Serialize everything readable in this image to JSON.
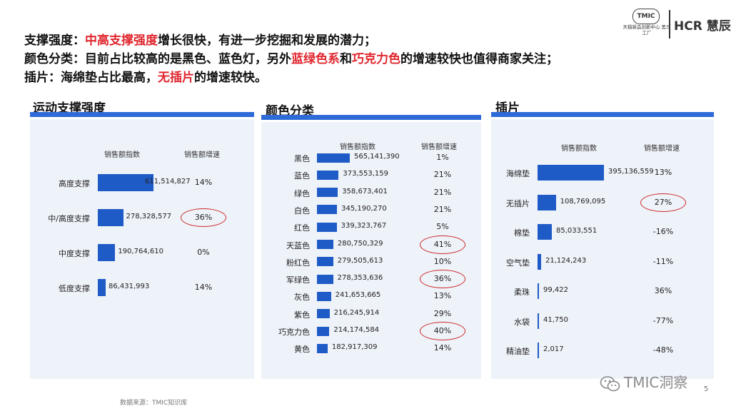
{
  "headlines": [
    {
      "parts": [
        {
          "text": "支撑强度：",
          "hl": false
        },
        {
          "text": "中高支撑强度",
          "hl": true
        },
        {
          "text": "增长很快，有进一步挖掘和发展的潜力；",
          "hl": false
        }
      ]
    },
    {
      "parts": [
        {
          "text": "颜色分类：目前占比较高的是黑色、蓝色灯，另外",
          "hl": false
        },
        {
          "text": "蓝绿色系",
          "hl": true
        },
        {
          "text": "和",
          "hl": false
        },
        {
          "text": "巧克力色",
          "hl": true
        },
        {
          "text": "的增速较快也值得商家关注；",
          "hl": false
        }
      ]
    },
    {
      "parts": [
        {
          "text": "插片：海绵垫占比最高，",
          "hl": false
        },
        {
          "text": "无插片",
          "hl": true
        },
        {
          "text": "的增速较快。",
          "hl": false
        }
      ]
    }
  ],
  "logos": {
    "tmic": "TMIC",
    "tmic_sub": "天猫新品创新中心 黑马工厂",
    "hcr": "HCR 慧辰"
  },
  "colors": {
    "bar": "#1f5bc6",
    "rule": "#2f6bd8",
    "highlight": "#e0262e",
    "circle": "#cc2a2a"
  },
  "chart_data": [
    {
      "type": "bar",
      "title": "运动支撑强度",
      "value_header": "销售额指数",
      "growth_header": "销售额增速",
      "categories": [
        "高度支撑",
        "中/高度支撑",
        "中度支撑",
        "低度支撑"
      ],
      "values": [
        611514827,
        278328577,
        190764610,
        86431993
      ],
      "value_labels": [
        "611,514,827",
        "278,328,577",
        "190,764,610",
        "86,431,993"
      ],
      "growth": [
        "14%",
        "36%",
        "0%",
        "14%"
      ],
      "circled": [
        "36%"
      ]
    },
    {
      "type": "bar",
      "title": "颜色分类",
      "value_header": "销售额指数",
      "growth_header": "销售额增速",
      "categories": [
        "黑色",
        "蓝色",
        "绿色",
        "白色",
        "红色",
        "天蓝色",
        "粉红色",
        "军绿色",
        "灰色",
        "紫色",
        "巧克力色",
        "黄色"
      ],
      "values": [
        565141390,
        373553159,
        358673401,
        345190270,
        339323767,
        280750329,
        279505613,
        278353636,
        241653665,
        216245914,
        214174584,
        182917309
      ],
      "value_labels": [
        "565,141,390",
        "373,553,159",
        "358,673,401",
        "345,190,270",
        "339,323,767",
        "280,750,329",
        "279,505,613",
        "278,353,636",
        "241,653,665",
        "216,245,914",
        "214,174,584",
        "182,917,309"
      ],
      "growth": [
        "1%",
        "21%",
        "21%",
        "21%",
        "5%",
        "41%",
        "10%",
        "36%",
        "13%",
        "29%",
        "40%",
        "14%"
      ],
      "circled": [
        "41%",
        "36%",
        "40%"
      ]
    },
    {
      "type": "bar",
      "title": "插片",
      "value_header": "销售额指数",
      "growth_header": "销售额增速",
      "categories": [
        "海绵垫",
        "无插片",
        "棉垫",
        "空气垫",
        "柔珠",
        "水袋",
        "精油垫"
      ],
      "values": [
        395136559,
        108769095,
        85033551,
        21124243,
        99422,
        41750,
        2017
      ],
      "value_labels": [
        "395,136,559",
        "108,769,095",
        "85,033,551",
        "21,124,243",
        "99,422",
        "41,750",
        "2,017"
      ],
      "growth": [
        "13%",
        "27%",
        "-16%",
        "-11%",
        "36%",
        "-77%",
        "-48%"
      ],
      "circled": [
        "27%"
      ]
    }
  ],
  "footer": {
    "source": "数据来源：TMIC知识库",
    "wechat": "TMIC洞察",
    "page": "5"
  }
}
